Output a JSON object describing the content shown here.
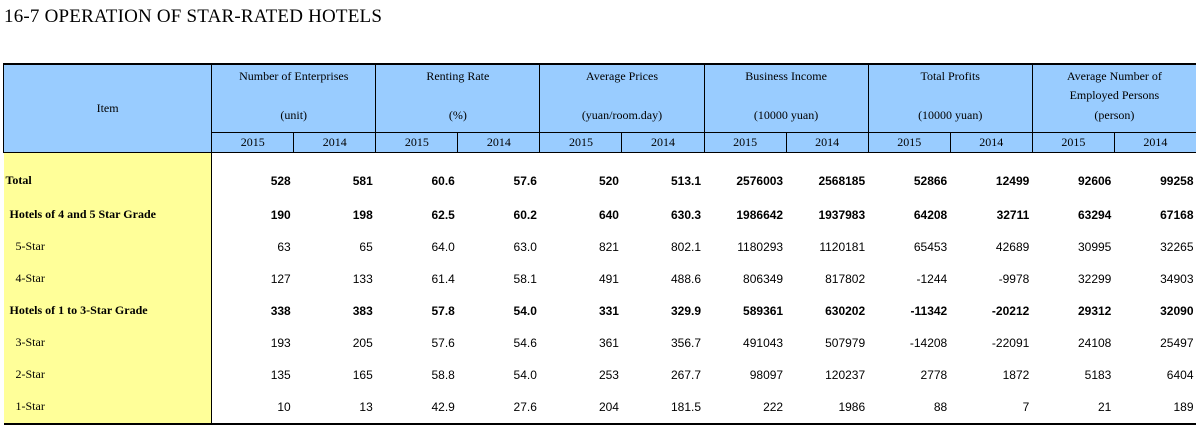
{
  "title": "16-7  OPERATION OF STAR-RATED HOTELS",
  "columns": [
    {
      "name": "Number of Enterprises",
      "name2": "",
      "unit": "(unit)"
    },
    {
      "name": "Renting Rate",
      "name2": "",
      "unit": "(%)"
    },
    {
      "name": "Average Prices",
      "name2": "",
      "unit": "(yuan/room.day)"
    },
    {
      "name": "Business Income",
      "name2": "",
      "unit": "(10000 yuan)"
    },
    {
      "name": "Total Profits",
      "name2": "",
      "unit": "(10000 yuan)"
    },
    {
      "name": "Average Number of",
      "name2": "Employed Persons",
      "unit": "(person)"
    }
  ],
  "item_header": "Item",
  "years": [
    "2015",
    "2014"
  ],
  "rows": [
    {
      "label": "Total",
      "bold": true,
      "indent": 0,
      "values": [
        "528",
        "581",
        "60.6",
        "57.6",
        "520",
        "513.1",
        "2576003",
        "2568185",
        "52866",
        "12499",
        "92606",
        "99258"
      ]
    },
    {
      "label": "Hotels of 4 and 5 Star Grade",
      "bold": true,
      "indent": 1,
      "values": [
        "190",
        "198",
        "62.5",
        "60.2",
        "640",
        "630.3",
        "1986642",
        "1937983",
        "64208",
        "32711",
        "63294",
        "67168"
      ]
    },
    {
      "label": "5-Star",
      "bold": false,
      "indent": 2,
      "values": [
        "63",
        "65",
        "64.0",
        "63.0",
        "821",
        "802.1",
        "1180293",
        "1120181",
        "65453",
        "42689",
        "30995",
        "32265"
      ]
    },
    {
      "label": "4-Star",
      "bold": false,
      "indent": 2,
      "values": [
        "127",
        "133",
        "61.4",
        "58.1",
        "491",
        "488.6",
        "806349",
        "817802",
        "-1244",
        "-9978",
        "32299",
        "34903"
      ]
    },
    {
      "label": "Hotels of 1 to 3-Star Grade",
      "bold": true,
      "indent": 1,
      "values": [
        "338",
        "383",
        "57.8",
        "54.0",
        "331",
        "329.9",
        "589361",
        "630202",
        "-11342",
        "-20212",
        "29312",
        "32090"
      ]
    },
    {
      "label": "3-Star",
      "bold": false,
      "indent": 2,
      "values": [
        "193",
        "205",
        "57.6",
        "54.6",
        "361",
        "356.7",
        "491043",
        "507979",
        "-14208",
        "-22091",
        "24108",
        "25497"
      ]
    },
    {
      "label": "2-Star",
      "bold": false,
      "indent": 2,
      "values": [
        "135",
        "165",
        "58.8",
        "54.0",
        "253",
        "267.7",
        "98097",
        "120237",
        "2778",
        "1872",
        "5183",
        "6404"
      ]
    },
    {
      "label": "1-Star",
      "bold": false,
      "indent": 2,
      "values": [
        "10",
        "13",
        "42.9",
        "27.6",
        "204",
        "181.5",
        "222",
        "1986",
        "88",
        "7",
        "21",
        "189"
      ]
    }
  ],
  "colors": {
    "header_bg": "#99ccff",
    "item_bg": "#ffff99"
  }
}
